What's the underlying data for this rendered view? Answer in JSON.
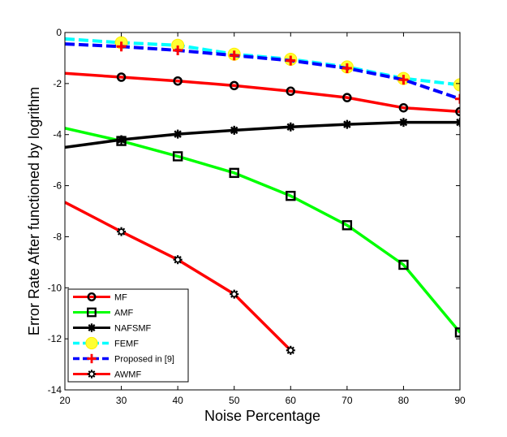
{
  "chart_data": {
    "type": "line",
    "title": "",
    "xlabel": "Noise Percentage",
    "ylabel": "Error Rate After functioned by logrithm",
    "xlim": [
      20,
      90
    ],
    "ylim": [
      -14,
      0
    ],
    "xticks": [
      20,
      30,
      40,
      50,
      60,
      70,
      80,
      90
    ],
    "yticks": [
      -14,
      -12,
      -10,
      -8,
      -6,
      -4,
      -2,
      0
    ],
    "grid": false,
    "legend_position": "bottom-left",
    "series": [
      {
        "name": "MF",
        "color": "#ff0000",
        "marker": "circle-open-black",
        "line_x": [
          20,
          30,
          40,
          50,
          60,
          70,
          80,
          90
        ],
        "line_y": [
          -1.6,
          -1.75,
          -1.9,
          -2.08,
          -2.3,
          -2.55,
          -2.95,
          -3.1
        ],
        "marker_x": [
          30,
          40,
          50,
          60,
          70,
          80,
          90
        ],
        "marker_y": [
          -1.75,
          -1.9,
          -2.08,
          -2.3,
          -2.55,
          -2.95,
          -3.1
        ]
      },
      {
        "name": "AMF",
        "color": "#00ff00",
        "marker": "square-open-black",
        "line_x": [
          20,
          30,
          40,
          50,
          60,
          70,
          80,
          90
        ],
        "line_y": [
          -3.75,
          -4.25,
          -4.85,
          -5.5,
          -6.4,
          -7.55,
          -9.1,
          -11.75
        ],
        "marker_x": [
          30,
          40,
          50,
          60,
          70,
          80,
          90
        ],
        "marker_y": [
          -4.25,
          -4.85,
          -5.5,
          -6.4,
          -7.55,
          -9.1,
          -11.75
        ]
      },
      {
        "name": "NAFSMF",
        "color": "#000000",
        "marker": "star-black",
        "line_x": [
          20,
          30,
          40,
          50,
          60,
          70,
          80,
          90
        ],
        "line_y": [
          -4.5,
          -4.2,
          -3.98,
          -3.83,
          -3.7,
          -3.6,
          -3.52,
          -3.52
        ],
        "marker_x": [
          30,
          40,
          50,
          60,
          70,
          80,
          90
        ],
        "marker_y": [
          -4.2,
          -3.98,
          -3.83,
          -3.7,
          -3.6,
          -3.52,
          -3.52
        ]
      },
      {
        "name": "FEMF",
        "color": "#00ffff",
        "dash": true,
        "marker": "circle-filled-yellow",
        "line_x": [
          20,
          30,
          40,
          50,
          60,
          70,
          80,
          90
        ],
        "line_y": [
          -0.25,
          -0.4,
          -0.5,
          -0.85,
          -1.05,
          -1.35,
          -1.8,
          -2.05
        ],
        "marker_x": [
          30,
          40,
          50,
          60,
          70,
          80,
          90
        ],
        "marker_y": [
          -0.4,
          -0.5,
          -0.85,
          -1.05,
          -1.35,
          -1.8,
          -2.05
        ]
      },
      {
        "name": "Proposed in [9]",
        "color": "#0000ff",
        "dash": true,
        "marker": "plus-red",
        "line_x": [
          20,
          30,
          40,
          50,
          60,
          70,
          80,
          90
        ],
        "line_y": [
          -0.45,
          -0.55,
          -0.7,
          -0.9,
          -1.1,
          -1.4,
          -1.85,
          -2.6
        ],
        "marker_x": [
          30,
          40,
          50,
          60,
          70,
          80,
          90
        ],
        "marker_y": [
          -0.55,
          -0.7,
          -0.9,
          -1.1,
          -1.4,
          -1.85,
          -2.6
        ]
      },
      {
        "name": "AWMF",
        "color": "#ff0000",
        "marker": "star-open-black",
        "line_x": [
          20,
          30,
          40,
          50,
          60
        ],
        "line_y": [
          -6.65,
          -7.8,
          -8.9,
          -10.25,
          -12.45
        ],
        "marker_x": [
          30,
          40,
          50,
          60
        ],
        "marker_y": [
          -7.8,
          -8.9,
          -10.25,
          -12.45
        ]
      }
    ]
  }
}
